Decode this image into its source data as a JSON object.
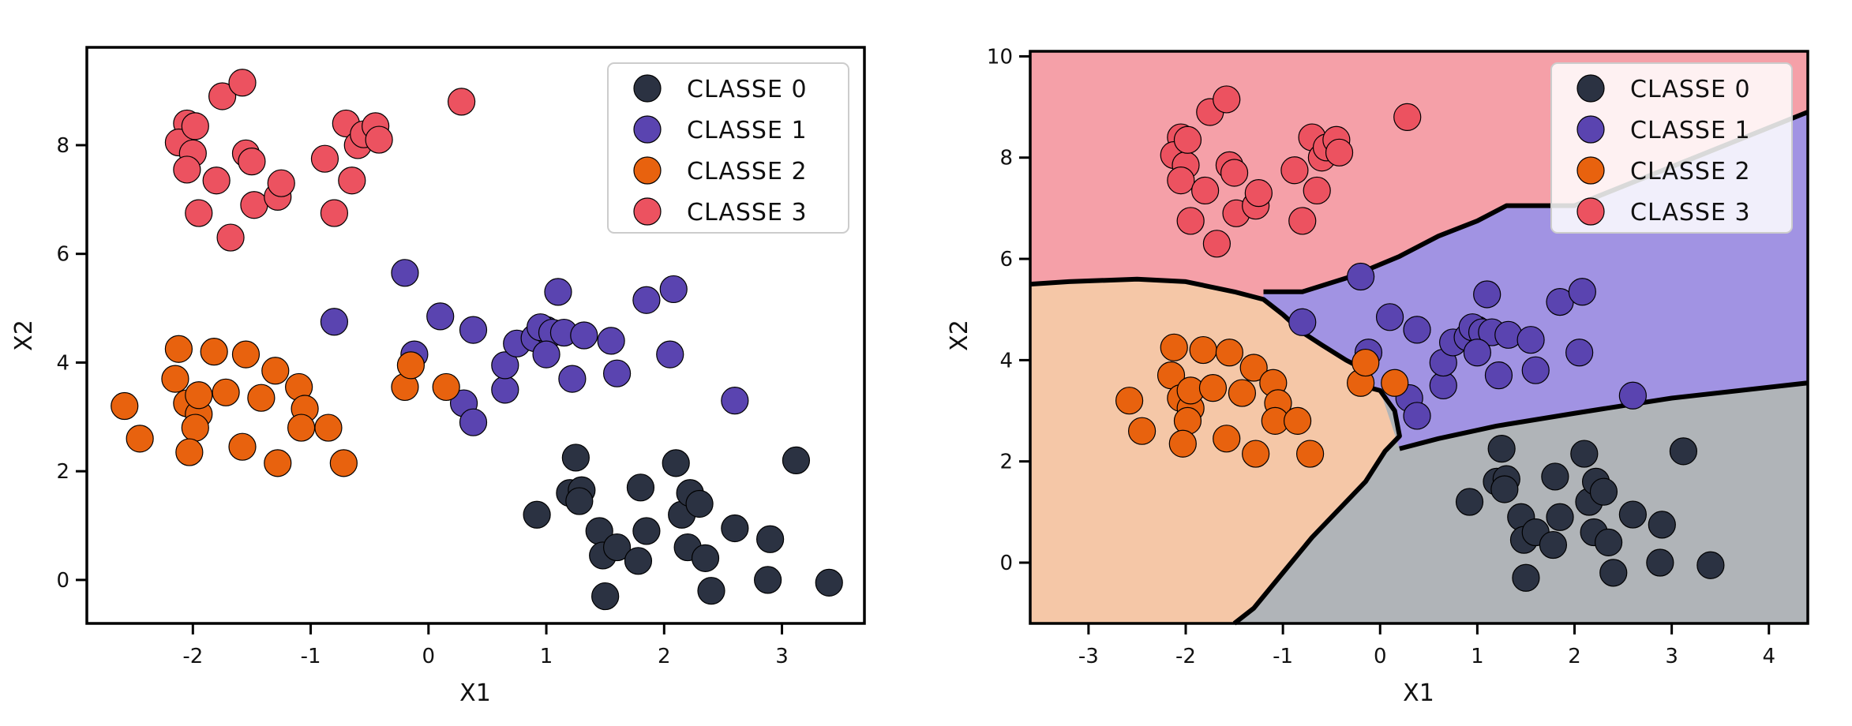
{
  "chart_data": [
    {
      "type": "scatter",
      "xlabel": "X1",
      "ylabel": "X2",
      "xlim": [
        -2.9,
        3.7
      ],
      "ylim": [
        -0.8,
        9.8
      ],
      "xticks": [
        -2,
        -1,
        0,
        1,
        2,
        3
      ],
      "yticks": [
        0,
        2,
        4,
        6,
        8
      ],
      "legend": {
        "position": "top-right",
        "entries": [
          "CLASSE 0",
          "CLASSE 1",
          "CLASSE 2",
          "CLASSE 3"
        ]
      },
      "series": [
        {
          "name": "CLASSE 0",
          "color": "#2b3242",
          "points": [
            [
              0.92,
              1.2
            ],
            [
              1.25,
              2.25
            ],
            [
              1.2,
              1.6
            ],
            [
              1.3,
              1.65
            ],
            [
              1.28,
              1.45
            ],
            [
              1.45,
              0.9
            ],
            [
              1.48,
              0.45
            ],
            [
              1.6,
              0.6
            ],
            [
              1.5,
              -0.3
            ],
            [
              1.8,
              1.7
            ],
            [
              1.85,
              0.9
            ],
            [
              1.78,
              0.35
            ],
            [
              2.1,
              2.15
            ],
            [
              2.15,
              1.2
            ],
            [
              2.22,
              1.6
            ],
            [
              2.3,
              1.4
            ],
            [
              2.2,
              0.6
            ],
            [
              2.35,
              0.4
            ],
            [
              2.4,
              -0.2
            ],
            [
              2.6,
              0.95
            ],
            [
              2.9,
              0.75
            ],
            [
              2.88,
              0.0
            ],
            [
              3.12,
              2.2
            ],
            [
              3.4,
              -0.05
            ]
          ]
        },
        {
          "name": "CLASSE 1",
          "color": "#5a44b0",
          "points": [
            [
              -0.2,
              5.65
            ],
            [
              -0.8,
              4.75
            ],
            [
              0.1,
              4.85
            ],
            [
              0.38,
              4.6
            ],
            [
              -0.12,
              4.15
            ],
            [
              0.3,
              3.25
            ],
            [
              0.38,
              2.9
            ],
            [
              0.65,
              3.5
            ],
            [
              0.65,
              3.95
            ],
            [
              0.75,
              4.35
            ],
            [
              0.9,
              4.45
            ],
            [
              1.0,
              4.6
            ],
            [
              0.95,
              4.65
            ],
            [
              1.05,
              4.55
            ],
            [
              1.15,
              4.55
            ],
            [
              1.0,
              4.15
            ],
            [
              1.1,
              5.3
            ],
            [
              1.22,
              3.7
            ],
            [
              1.32,
              4.5
            ],
            [
              1.55,
              4.4
            ],
            [
              1.6,
              3.8
            ],
            [
              1.85,
              5.15
            ],
            [
              2.08,
              5.35
            ],
            [
              2.05,
              4.15
            ],
            [
              2.6,
              3.3
            ]
          ]
        },
        {
          "name": "CLASSE 2",
          "color": "#e8620e",
          "points": [
            [
              -2.58,
              3.2
            ],
            [
              -2.45,
              2.6
            ],
            [
              -2.15,
              3.7
            ],
            [
              -2.12,
              4.25
            ],
            [
              -2.05,
              3.25
            ],
            [
              -1.95,
              3.05
            ],
            [
              -1.98,
              2.8
            ],
            [
              -2.03,
              2.35
            ],
            [
              -1.95,
              3.4
            ],
            [
              -1.82,
              4.2
            ],
            [
              -1.72,
              3.45
            ],
            [
              -1.55,
              4.15
            ],
            [
              -1.58,
              2.45
            ],
            [
              -1.42,
              3.35
            ],
            [
              -1.3,
              3.85
            ],
            [
              -1.28,
              2.15
            ],
            [
              -1.1,
              3.55
            ],
            [
              -1.05,
              3.15
            ],
            [
              -1.08,
              2.8
            ],
            [
              -0.85,
              2.8
            ],
            [
              -0.72,
              2.15
            ],
            [
              -0.2,
              3.55
            ],
            [
              -0.15,
              3.95
            ],
            [
              0.15,
              3.55
            ]
          ]
        },
        {
          "name": "CLASSE 3",
          "color": "#ec5260",
          "points": [
            [
              -2.05,
              8.4
            ],
            [
              -1.75,
              8.9
            ],
            [
              -1.58,
              9.15
            ],
            [
              -2.12,
              8.05
            ],
            [
              -2.0,
              7.85
            ],
            [
              -1.98,
              8.35
            ],
            [
              -2.05,
              7.55
            ],
            [
              -1.8,
              7.35
            ],
            [
              -1.95,
              6.75
            ],
            [
              -1.68,
              6.3
            ],
            [
              -1.55,
              7.85
            ],
            [
              -1.5,
              7.7
            ],
            [
              -1.48,
              6.9
            ],
            [
              -1.28,
              7.05
            ],
            [
              -1.25,
              7.3
            ],
            [
              -0.88,
              7.75
            ],
            [
              -0.8,
              6.75
            ],
            [
              -0.7,
              8.4
            ],
            [
              -0.65,
              7.35
            ],
            [
              -0.6,
              8.0
            ],
            [
              -0.55,
              8.2
            ],
            [
              -0.45,
              8.35
            ],
            [
              -0.42,
              8.1
            ],
            [
              0.28,
              8.8
            ]
          ]
        }
      ]
    },
    {
      "type": "scatter",
      "xlabel": "X1",
      "ylabel": "X2",
      "xlim": [
        -3.6,
        4.4
      ],
      "ylim": [
        -1.2,
        10.1
      ],
      "xticks": [
        -3,
        -2,
        -1,
        0,
        1,
        2,
        3,
        4
      ],
      "yticks": [
        0,
        2,
        4,
        6,
        8,
        10
      ],
      "decision_regions": true,
      "region_colors": [
        "#b0b4b8",
        "#a193e3",
        "#f5c7a7",
        "#f5a0a8"
      ],
      "legend": {
        "position": "top-right",
        "entries": [
          "CLASSE 0",
          "CLASSE 1",
          "CLASSE 2",
          "CLASSE 3"
        ]
      },
      "series": [
        {
          "name": "CLASSE 0",
          "color": "#2b3242",
          "points": [
            [
              0.92,
              1.2
            ],
            [
              1.25,
              2.25
            ],
            [
              1.2,
              1.6
            ],
            [
              1.3,
              1.65
            ],
            [
              1.28,
              1.45
            ],
            [
              1.45,
              0.9
            ],
            [
              1.48,
              0.45
            ],
            [
              1.6,
              0.6
            ],
            [
              1.5,
              -0.3
            ],
            [
              1.8,
              1.7
            ],
            [
              1.85,
              0.9
            ],
            [
              1.78,
              0.35
            ],
            [
              2.1,
              2.15
            ],
            [
              2.15,
              1.2
            ],
            [
              2.22,
              1.6
            ],
            [
              2.3,
              1.4
            ],
            [
              2.2,
              0.6
            ],
            [
              2.35,
              0.4
            ],
            [
              2.4,
              -0.2
            ],
            [
              2.6,
              0.95
            ],
            [
              2.9,
              0.75
            ],
            [
              2.88,
              0.0
            ],
            [
              3.12,
              2.2
            ],
            [
              3.4,
              -0.05
            ]
          ]
        },
        {
          "name": "CLASSE 1",
          "color": "#5a44b0",
          "points": [
            [
              -0.2,
              5.65
            ],
            [
              -0.8,
              4.75
            ],
            [
              0.1,
              4.85
            ],
            [
              0.38,
              4.6
            ],
            [
              -0.12,
              4.15
            ],
            [
              0.3,
              3.25
            ],
            [
              0.38,
              2.9
            ],
            [
              0.65,
              3.5
            ],
            [
              0.65,
              3.95
            ],
            [
              0.75,
              4.35
            ],
            [
              0.9,
              4.45
            ],
            [
              1.0,
              4.6
            ],
            [
              0.95,
              4.65
            ],
            [
              1.05,
              4.55
            ],
            [
              1.15,
              4.55
            ],
            [
              1.0,
              4.15
            ],
            [
              1.1,
              5.3
            ],
            [
              1.22,
              3.7
            ],
            [
              1.32,
              4.5
            ],
            [
              1.55,
              4.4
            ],
            [
              1.6,
              3.8
            ],
            [
              1.85,
              5.15
            ],
            [
              2.08,
              5.35
            ],
            [
              2.05,
              4.15
            ],
            [
              2.6,
              3.3
            ]
          ]
        },
        {
          "name": "CLASSE 2",
          "color": "#e8620e",
          "points": [
            [
              -2.58,
              3.2
            ],
            [
              -2.45,
              2.6
            ],
            [
              -2.15,
              3.7
            ],
            [
              -2.12,
              4.25
            ],
            [
              -2.05,
              3.25
            ],
            [
              -1.95,
              3.05
            ],
            [
              -1.98,
              2.8
            ],
            [
              -2.03,
              2.35
            ],
            [
              -1.95,
              3.4
            ],
            [
              -1.82,
              4.2
            ],
            [
              -1.72,
              3.45
            ],
            [
              -1.55,
              4.15
            ],
            [
              -1.58,
              2.45
            ],
            [
              -1.42,
              3.35
            ],
            [
              -1.3,
              3.85
            ],
            [
              -1.28,
              2.15
            ],
            [
              -1.1,
              3.55
            ],
            [
              -1.05,
              3.15
            ],
            [
              -1.08,
              2.8
            ],
            [
              -0.85,
              2.8
            ],
            [
              -0.72,
              2.15
            ],
            [
              -0.2,
              3.55
            ],
            [
              -0.15,
              3.95
            ],
            [
              0.15,
              3.55
            ]
          ]
        },
        {
          "name": "CLASSE 3",
          "color": "#ec5260",
          "points": [
            [
              -2.05,
              8.4
            ],
            [
              -1.75,
              8.9
            ],
            [
              -1.58,
              9.15
            ],
            [
              -2.12,
              8.05
            ],
            [
              -2.0,
              7.85
            ],
            [
              -1.98,
              8.35
            ],
            [
              -2.05,
              7.55
            ],
            [
              -1.8,
              7.35
            ],
            [
              -1.95,
              6.75
            ],
            [
              -1.68,
              6.3
            ],
            [
              -1.55,
              7.85
            ],
            [
              -1.5,
              7.7
            ],
            [
              -1.48,
              6.9
            ],
            [
              -1.28,
              7.05
            ],
            [
              -1.25,
              7.3
            ],
            [
              -0.88,
              7.75
            ],
            [
              -0.8,
              6.75
            ],
            [
              -0.7,
              8.4
            ],
            [
              -0.65,
              7.35
            ],
            [
              -0.6,
              8.0
            ],
            [
              -0.55,
              8.2
            ],
            [
              -0.45,
              8.35
            ],
            [
              -0.42,
              8.1
            ],
            [
              0.28,
              8.8
            ]
          ]
        }
      ],
      "boundaries": [
        [
          [
            -3.6,
            5.5
          ],
          [
            -3.2,
            5.55
          ],
          [
            -2.5,
            5.6
          ],
          [
            -2.0,
            5.55
          ],
          [
            -1.5,
            5.35
          ],
          [
            -1.2,
            5.2
          ],
          [
            -1.0,
            4.9
          ],
          [
            -0.8,
            4.55
          ],
          [
            -0.6,
            4.3
          ],
          [
            -0.35,
            4.0
          ],
          [
            -0.2,
            3.85
          ],
          [
            -0.2,
            3.5
          ],
          [
            0.0,
            3.4
          ],
          [
            0.15,
            3.0
          ],
          [
            0.2,
            2.5
          ],
          [
            0.05,
            2.2
          ],
          [
            -0.15,
            1.6
          ],
          [
            -0.4,
            1.1
          ],
          [
            -0.7,
            0.5
          ],
          [
            -1.0,
            -0.2
          ],
          [
            -1.3,
            -0.9
          ],
          [
            -1.5,
            -1.2
          ]
        ],
        [
          [
            -1.2,
            5.35
          ],
          [
            -0.8,
            5.35
          ],
          [
            -0.3,
            5.65
          ],
          [
            0.2,
            6.05
          ],
          [
            0.6,
            6.45
          ],
          [
            1.0,
            6.75
          ],
          [
            1.3,
            7.05
          ],
          [
            2.0,
            7.05
          ],
          [
            4.4,
            8.9
          ]
        ],
        [
          [
            0.2,
            2.25
          ],
          [
            0.6,
            2.45
          ],
          [
            1.2,
            2.7
          ],
          [
            2.0,
            2.95
          ],
          [
            3.0,
            3.25
          ],
          [
            4.4,
            3.55
          ]
        ]
      ]
    }
  ]
}
